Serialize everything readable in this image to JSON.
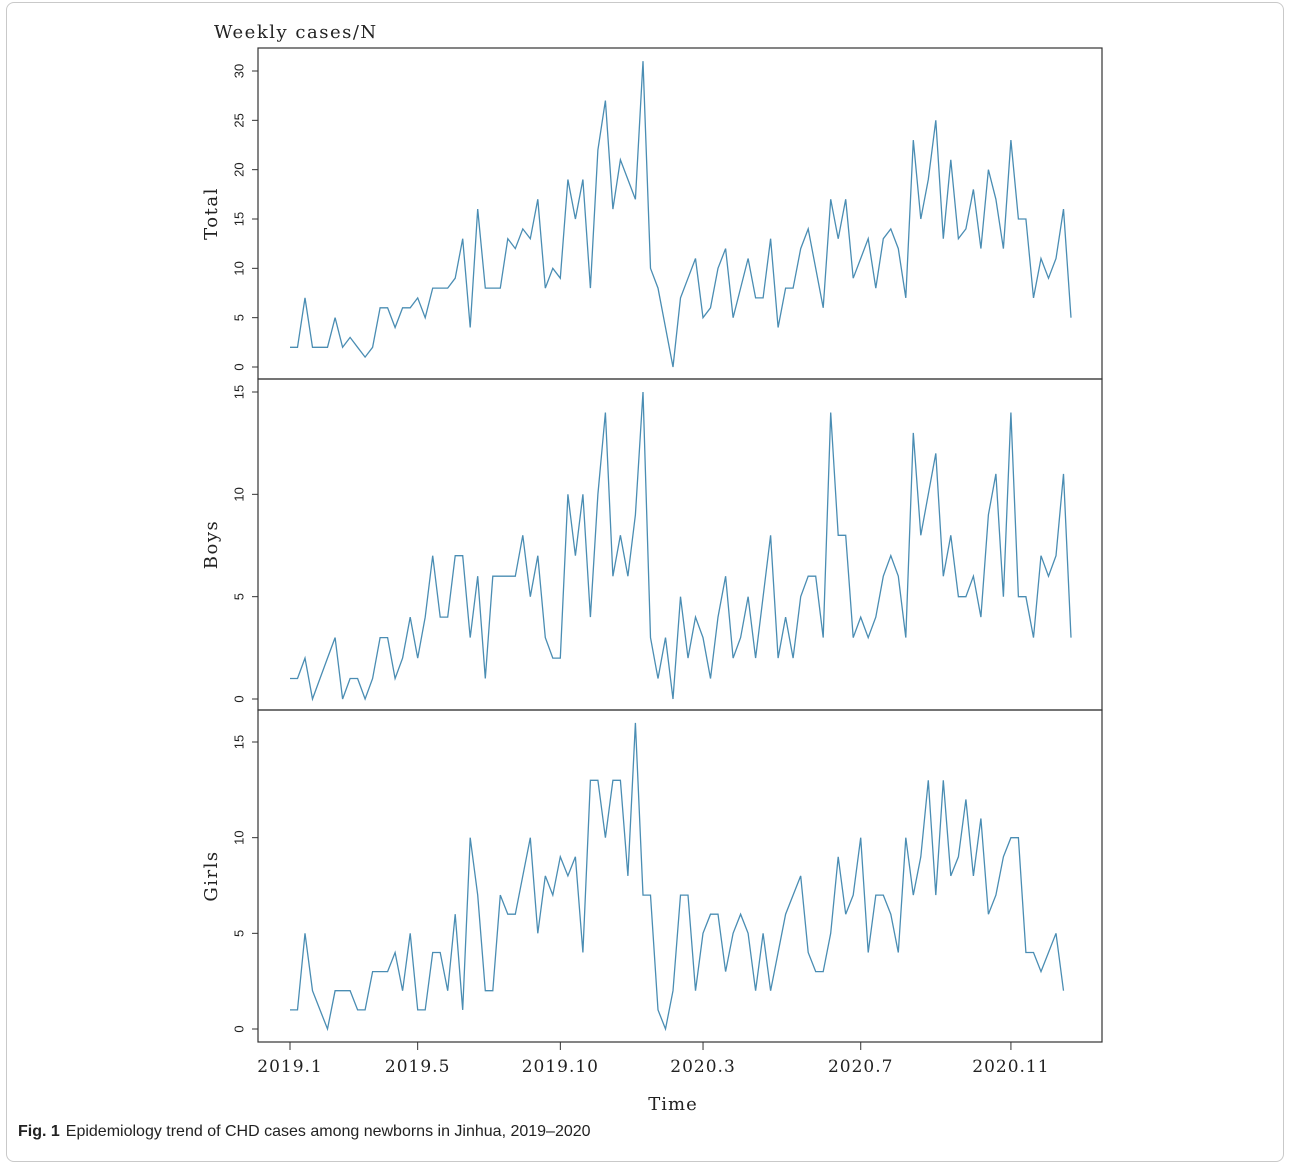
{
  "caption": {
    "label": "Fig. 1",
    "text": "Epidemiology trend of CHD cases among newborns in Jinhua, 2019–2020"
  },
  "line_color": "#4a8db3",
  "chart_data": {
    "type": "line",
    "title": "Weekly cases/N",
    "xlabel": "Time",
    "x_ticks": [
      "2019.1",
      "2019.5",
      "2019.10",
      "2020.3",
      "2020.7",
      "2020.11"
    ],
    "x_range": [
      1,
      105
    ],
    "x_tick_positions": [
      1,
      18,
      37,
      56,
      77,
      97
    ],
    "grid": false,
    "panels": [
      {
        "name": "Total",
        "ylabel": "Total",
        "ylim": [
          0,
          31
        ],
        "y_ticks": [
          0,
          5,
          10,
          15,
          20,
          25,
          30
        ],
        "values": [
          2,
          2,
          7,
          2,
          2,
          2,
          5,
          2,
          3,
          2,
          1,
          2,
          6,
          6,
          4,
          6,
          6,
          7,
          5,
          8,
          8,
          8,
          9,
          13,
          4,
          16,
          8,
          8,
          8,
          13,
          12,
          14,
          13,
          17,
          8,
          10,
          9,
          19,
          15,
          19,
          8,
          22,
          27,
          16,
          21,
          19,
          17,
          31,
          10,
          8,
          4,
          0,
          7,
          9,
          11,
          5,
          6,
          10,
          12,
          5,
          8,
          11,
          7,
          7,
          13,
          4,
          8,
          8,
          12,
          14,
          10,
          6,
          17,
          13,
          17,
          9,
          11,
          13,
          8,
          13,
          14,
          12,
          7,
          23,
          15,
          19,
          25,
          13,
          21,
          13,
          14,
          18,
          12,
          20,
          17,
          12,
          23,
          15,
          15,
          7,
          11,
          9,
          11,
          16,
          5
        ]
      },
      {
        "name": "Boys",
        "ylabel": "Boys",
        "ylim": [
          0,
          15
        ],
        "y_ticks": [
          0,
          5,
          10,
          15
        ],
        "values": [
          1,
          1,
          2,
          0,
          1,
          2,
          3,
          0,
          1,
          1,
          0,
          1,
          3,
          3,
          1,
          2,
          4,
          2,
          4,
          7,
          4,
          4,
          7,
          7,
          3,
          6,
          1,
          6,
          6,
          6,
          6,
          8,
          5,
          7,
          3,
          2,
          2,
          10,
          7,
          10,
          4,
          10,
          14,
          6,
          8,
          6,
          9,
          15,
          3,
          1,
          3,
          0,
          5,
          2,
          4,
          3,
          1,
          4,
          6,
          2,
          3,
          5,
          2,
          5,
          8,
          2,
          4,
          2,
          5,
          6,
          6,
          3,
          14,
          8,
          8,
          3,
          4,
          3,
          4,
          6,
          7,
          6,
          3,
          13,
          8,
          10,
          12,
          6,
          8,
          5,
          5,
          6,
          4,
          9,
          11,
          5,
          14,
          5,
          5,
          3,
          7,
          6,
          7,
          11,
          3
        ]
      },
      {
        "name": "Girls",
        "ylabel": "Girls",
        "ylim": [
          0,
          16
        ],
        "y_ticks": [
          0,
          5,
          10,
          15
        ],
        "values": [
          1,
          1,
          5,
          2,
          1,
          0,
          2,
          2,
          2,
          1,
          1,
          3,
          3,
          3,
          4,
          2,
          5,
          1,
          1,
          4,
          4,
          2,
          6,
          1,
          10,
          7,
          2,
          2,
          7,
          6,
          6,
          8,
          10,
          5,
          8,
          7,
          9,
          8,
          9,
          4,
          13,
          13,
          10,
          13,
          13,
          8,
          16,
          7,
          7,
          1,
          0,
          2,
          7,
          7,
          2,
          5,
          6,
          6,
          3,
          5,
          6,
          5,
          2,
          5,
          2,
          4,
          6,
          7,
          8,
          4,
          3,
          3,
          5,
          9,
          6,
          7,
          10,
          4,
          7,
          7,
          6,
          4,
          10,
          7,
          9,
          13,
          7,
          13,
          8,
          9,
          12,
          8,
          11,
          6,
          7,
          9,
          10,
          10,
          4,
          4,
          3,
          4,
          5,
          2
        ]
      }
    ]
  }
}
